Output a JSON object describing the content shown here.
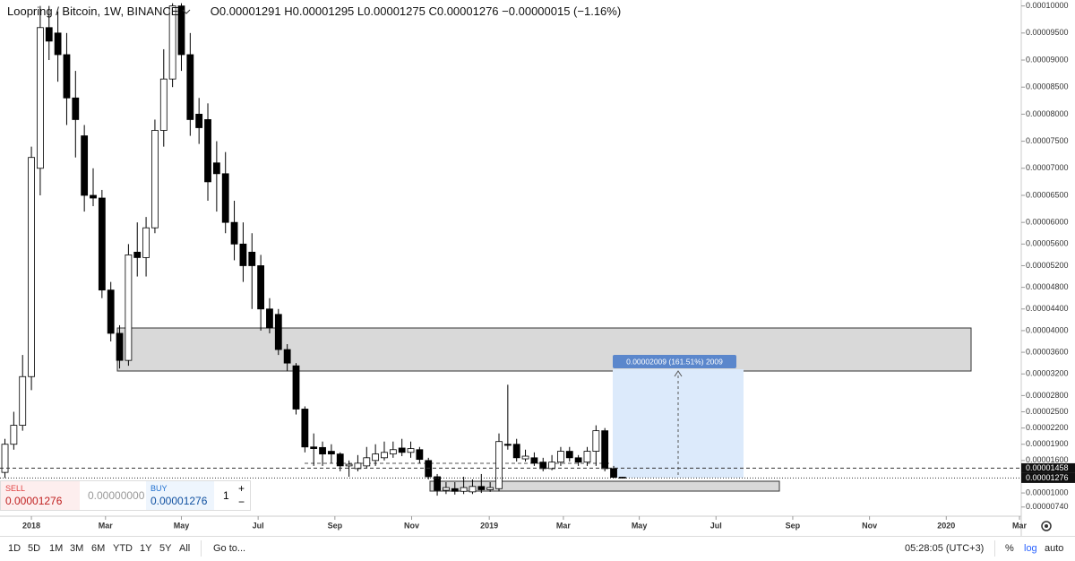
{
  "chart_data": {
    "type": "candlestick",
    "title": "Loopring / Bitcoin, 1W, BINANCE",
    "open": [
      1.38e-05,
      1.9e-05,
      2.25e-05,
      3.15e-05,
      7e-05,
      9.6e-05,
      9.5e-05,
      9.1e-05,
      8.3e-05,
      7.6e-05,
      6.5e-05,
      6.45e-05,
      4.75e-05,
      3.95e-05,
      3.45e-05,
      5.45e-05,
      5.35e-05,
      5.9e-05,
      7.7e-05,
      8.65e-05,
      0.0001,
      9.1e-05,
      8e-05,
      7.9e-05,
      7.1e-05,
      6.9e-05,
      6e-05,
      5.6e-05,
      5.45e-05,
      5.2e-05,
      4.4e-05,
      4.3e-05,
      3.65e-05,
      3.35e-05,
      2.55e-05,
      1.85e-05,
      1.84e-05,
      1.77e-05,
      1.72e-05,
      1.5e-05,
      1.45e-05,
      1.5e-05,
      1.6e-05,
      1.65e-05,
      1.72e-05,
      1.83e-05,
      1.75e-05,
      1.8e-05,
      1.6e-05,
      1.3e-05,
      1.05e-05,
      1.08e-05,
      1.03e-05,
      1.02e-05,
      1.12e-05,
      1.06e-05,
      1.08e-05,
      1.9e-05,
      1.9e-05,
      1.63e-05,
      1.65e-05,
      1.57e-05,
      1.45e-05,
      1.57e-05,
      1.77e-05,
      1.65e-05,
      1.57e-05,
      1.77e-05,
      2.15e-05,
      1.45e-05,
      1.291e-05
    ],
    "high": [
      2e-05,
      2.5e-05,
      3.55e-05,
      7.4e-05,
      0.0001,
      0.0001,
      9.9e-05,
      9.5e-05,
      8.8e-05,
      7.8e-05,
      7e-05,
      6.6e-05,
      4.9e-05,
      4.1e-05,
      5.6e-05,
      6e-05,
      6.1e-05,
      7.9e-05,
      9.2e-05,
      0.0001005,
      0.0001005,
      9.5e-05,
      8.3e-05,
      8.2e-05,
      7.5e-05,
      7.3e-05,
      6.4e-05,
      6e-05,
      5.8e-05,
      5.4e-05,
      4.6e-05,
      4.4e-05,
      3.75e-05,
      3.4e-05,
      2.6e-05,
      2.1e-05,
      1.95e-05,
      1.9e-05,
      1.75e-05,
      1.6e-05,
      1.7e-05,
      1.85e-05,
      1.9e-05,
      1.95e-05,
      1.95e-05,
      2e-05,
      1.95e-05,
      1.85e-05,
      1.65e-05,
      1.35e-05,
      1.2e-05,
      1.2e-05,
      1.3e-05,
      1.25e-05,
      1.35e-05,
      1.2e-05,
      2.1e-05,
      3e-05,
      2e-05,
      1.8e-05,
      1.75e-05,
      1.65e-05,
      1.7e-05,
      1.85e-05,
      1.85e-05,
      1.7e-05,
      1.85e-05,
      2.25e-05,
      2.2e-05,
      1.5e-05,
      1.295e-05
    ],
    "low": [
      1.28e-05,
      1.8e-05,
      2.15e-05,
      2.9e-05,
      6.5e-05,
      9e-05,
      8.6e-05,
      7.8e-05,
      7.2e-05,
      6.2e-05,
      6.3e-05,
      4.6e-05,
      3.8e-05,
      3.3e-05,
      3.35e-05,
      5e-05,
      5e-05,
      5.8e-05,
      7.4e-05,
      8.5e-05,
      8.8e-05,
      7.6e-05,
      7.45e-05,
      6.4e-05,
      6.2e-05,
      5.8e-05,
      5.3e-05,
      4.9e-05,
      4.4e-05,
      4e-05,
      3.95e-05,
      3.55e-05,
      3.25e-05,
      2.45e-05,
      1.75e-05,
      1.5e-05,
      1.5e-05,
      1.55e-05,
      1.4e-05,
      1.3e-05,
      1.4e-05,
      1.45e-05,
      1.5e-05,
      1.6e-05,
      1.65e-05,
      1.68e-05,
      1.65e-05,
      1.55e-05,
      1.25e-05,
      9.5e-06,
      9.8e-06,
      9.7e-06,
      9.8e-06,
      9.8e-06,
      1e-05,
      1.02e-05,
      1.03e-05,
      1.8e-05,
      1.58e-05,
      1.58e-05,
      1.5e-05,
      1.4e-05,
      1.42e-05,
      1.5e-05,
      1.58e-05,
      1.5e-05,
      1.5e-05,
      1.5e-05,
      1.4e-05,
      1.27e-05,
      1.275e-05
    ],
    "close": [
      1.9e-05,
      2.25e-05,
      3.15e-05,
      7.2e-05,
      9.6e-05,
      9.35e-05,
      9.1e-05,
      8.3e-05,
      7.9e-05,
      6.5e-05,
      6.45e-05,
      4.75e-05,
      3.95e-05,
      3.45e-05,
      5.4e-05,
      5.35e-05,
      5.9e-05,
      7.7e-05,
      8.65e-05,
      0.0001,
      9.1e-05,
      7.9e-05,
      7.75e-05,
      6.75e-05,
      6.9e-05,
      6e-05,
      5.6e-05,
      5.2e-05,
      5.2e-05,
      4.4e-05,
      4.05e-05,
      3.65e-05,
      3.4e-05,
      2.55e-05,
      1.85e-05,
      1.82e-05,
      1.72e-05,
      1.72e-05,
      1.5e-05,
      1.53e-05,
      1.55e-05,
      1.65e-05,
      1.72e-05,
      1.75e-05,
      1.8e-05,
      1.75e-05,
      1.82e-05,
      1.62e-05,
      1.3e-05,
      1.05e-05,
      1.1e-05,
      1.03e-05,
      1.1e-05,
      1.12e-05,
      1.06e-05,
      1.1e-05,
      1.95e-05,
      1.88e-05,
      1.65e-05,
      1.68e-05,
      1.55e-05,
      1.45e-05,
      1.57e-05,
      1.77e-05,
      1.65e-05,
      1.57e-05,
      1.77e-05,
      2.15e-05,
      1.45e-05,
      1.29e-05,
      1.276e-05
    ],
    "up_color": "#ffffff",
    "down_color": "#000000",
    "xlim": [
      -0.56,
      115.2
    ],
    "xticks": [
      {
        "value": 3,
        "label": "2018"
      },
      {
        "value": 11.4,
        "label": "Mar"
      },
      {
        "value": 20,
        "label": "May"
      },
      {
        "value": 28.7,
        "label": "Jul"
      },
      {
        "value": 37.4,
        "label": "Sep"
      },
      {
        "value": 46.1,
        "label": "Nov"
      },
      {
        "value": 54.9,
        "label": "2019"
      },
      {
        "value": 63.3,
        "label": "Mar"
      },
      {
        "value": 71.9,
        "label": "May"
      },
      {
        "value": 80.6,
        "label": "Jul"
      },
      {
        "value": 89.3,
        "label": "Sep"
      },
      {
        "value": 98,
        "label": "Nov"
      },
      {
        "value": 106.7,
        "label": "2020"
      },
      {
        "value": 115,
        "label": "Mar"
      }
    ],
    "ylim": [
      6.7e-06,
      0.0001011
    ],
    "yticks": [
      {
        "value": 0.0001,
        "label": "0.00010000"
      },
      {
        "value": 9.5e-05,
        "label": "0.00009500"
      },
      {
        "value": 9e-05,
        "label": "0.00009000"
      },
      {
        "value": 8.5e-05,
        "label": "0.00008500"
      },
      {
        "value": 8e-05,
        "label": "0.00008000"
      },
      {
        "value": 7.5e-05,
        "label": "0.00007500"
      },
      {
        "value": 7e-05,
        "label": "0.00007000"
      },
      {
        "value": 6.5e-05,
        "label": "0.00006500"
      },
      {
        "value": 6e-05,
        "label": "0.00006000"
      },
      {
        "value": 5.6e-05,
        "label": "0.00005600"
      },
      {
        "value": 5.2e-05,
        "label": "0.00005200"
      },
      {
        "value": 4.8e-05,
        "label": "0.00004800"
      },
      {
        "value": 4.4e-05,
        "label": "0.00004400"
      },
      {
        "value": 4e-05,
        "label": "0.00004000"
      },
      {
        "value": 3.6e-05,
        "label": "0.00003600"
      },
      {
        "value": 3.2e-05,
        "label": "0.00003200"
      },
      {
        "value": 2.8e-05,
        "label": "0.00002800"
      },
      {
        "value": 2.5e-05,
        "label": "0.00002500"
      },
      {
        "value": 2.2e-05,
        "label": "0.00002200"
      },
      {
        "value": 1.9e-05,
        "label": "0.00001900"
      },
      {
        "value": 1.6e-05,
        "label": "0.00001600"
      },
      {
        "value": 1e-05,
        "label": "0.00001000"
      },
      {
        "value": 7.4e-06,
        "label": "0.00000740"
      }
    ],
    "price_lines": [
      1.458e-05,
      1.276e-05
    ],
    "change": "−0.00000015 (−1.16%)",
    "measure_label": "0.00002009 (161.51%) 2009"
  },
  "header_labels": {
    "open": "O",
    "high": "H",
    "low": "L",
    "close": "C"
  },
  "trade_panel": {
    "sell_label": "SELL",
    "sell_price": "0.00001276",
    "spread": "0.00000000",
    "buy_label": "BUY",
    "buy_price": "0.00001276",
    "quantity": "1",
    "increment": "+",
    "decrement": "−"
  },
  "toolbar": {
    "ranges": [
      "1D",
      "5D",
      "1M",
      "3M",
      "6M",
      "YTD",
      "1Y",
      "5Y",
      "All"
    ],
    "goto": "Go to...",
    "time": "05:28:05 (UTC+3)",
    "percent": "%",
    "log": "log",
    "auto": "auto"
  }
}
